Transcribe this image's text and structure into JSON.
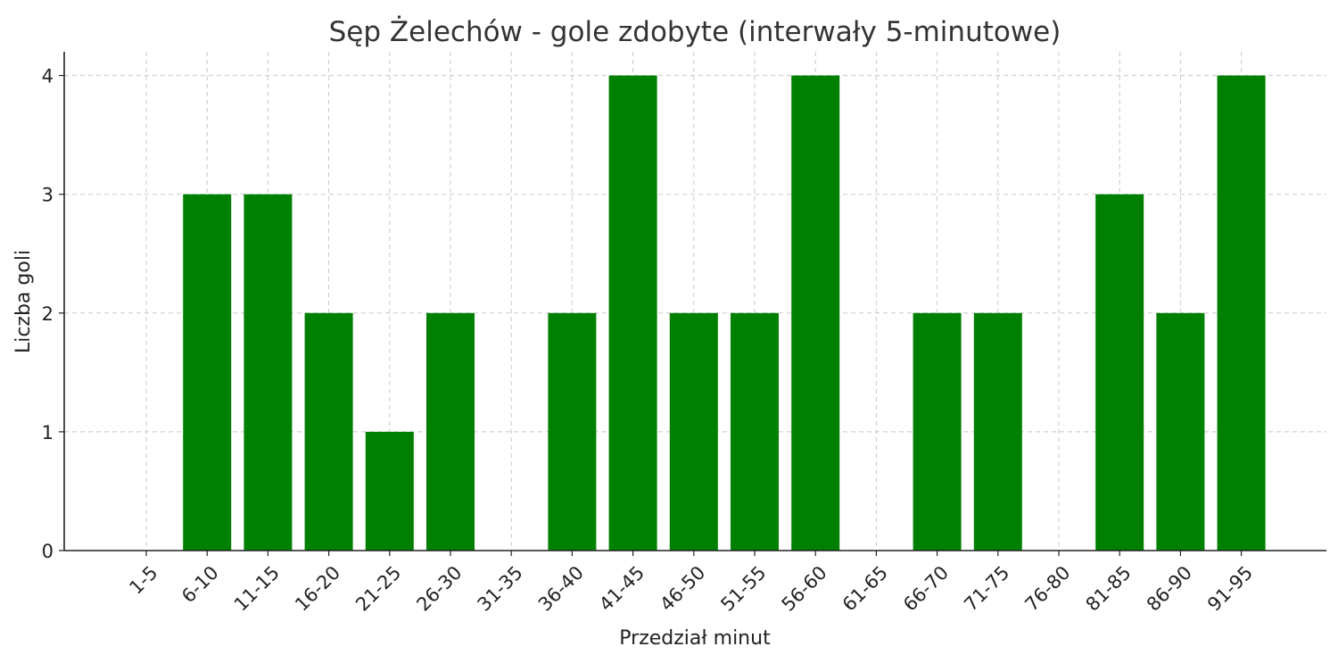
{
  "chart_data": {
    "type": "bar",
    "title": "Sęp Żelechów - gole zdobyte (interwały 5-minutowe)",
    "xlabel": "Przedział minut",
    "ylabel": "Liczba goli",
    "categories": [
      "1-5",
      "6-10",
      "11-15",
      "16-20",
      "21-25",
      "26-30",
      "31-35",
      "36-40",
      "41-45",
      "46-50",
      "51-55",
      "56-60",
      "61-65",
      "66-70",
      "71-75",
      "76-80",
      "81-85",
      "86-90",
      "91-95"
    ],
    "values": [
      0,
      3,
      3,
      2,
      1,
      2,
      0,
      2,
      4,
      2,
      2,
      4,
      0,
      2,
      2,
      0,
      3,
      2,
      4
    ],
    "ylim": [
      0,
      4.2
    ],
    "yticks": [
      "0",
      "1",
      "2",
      "3",
      "4"
    ],
    "grid": true,
    "bar_color": "#008000"
  }
}
